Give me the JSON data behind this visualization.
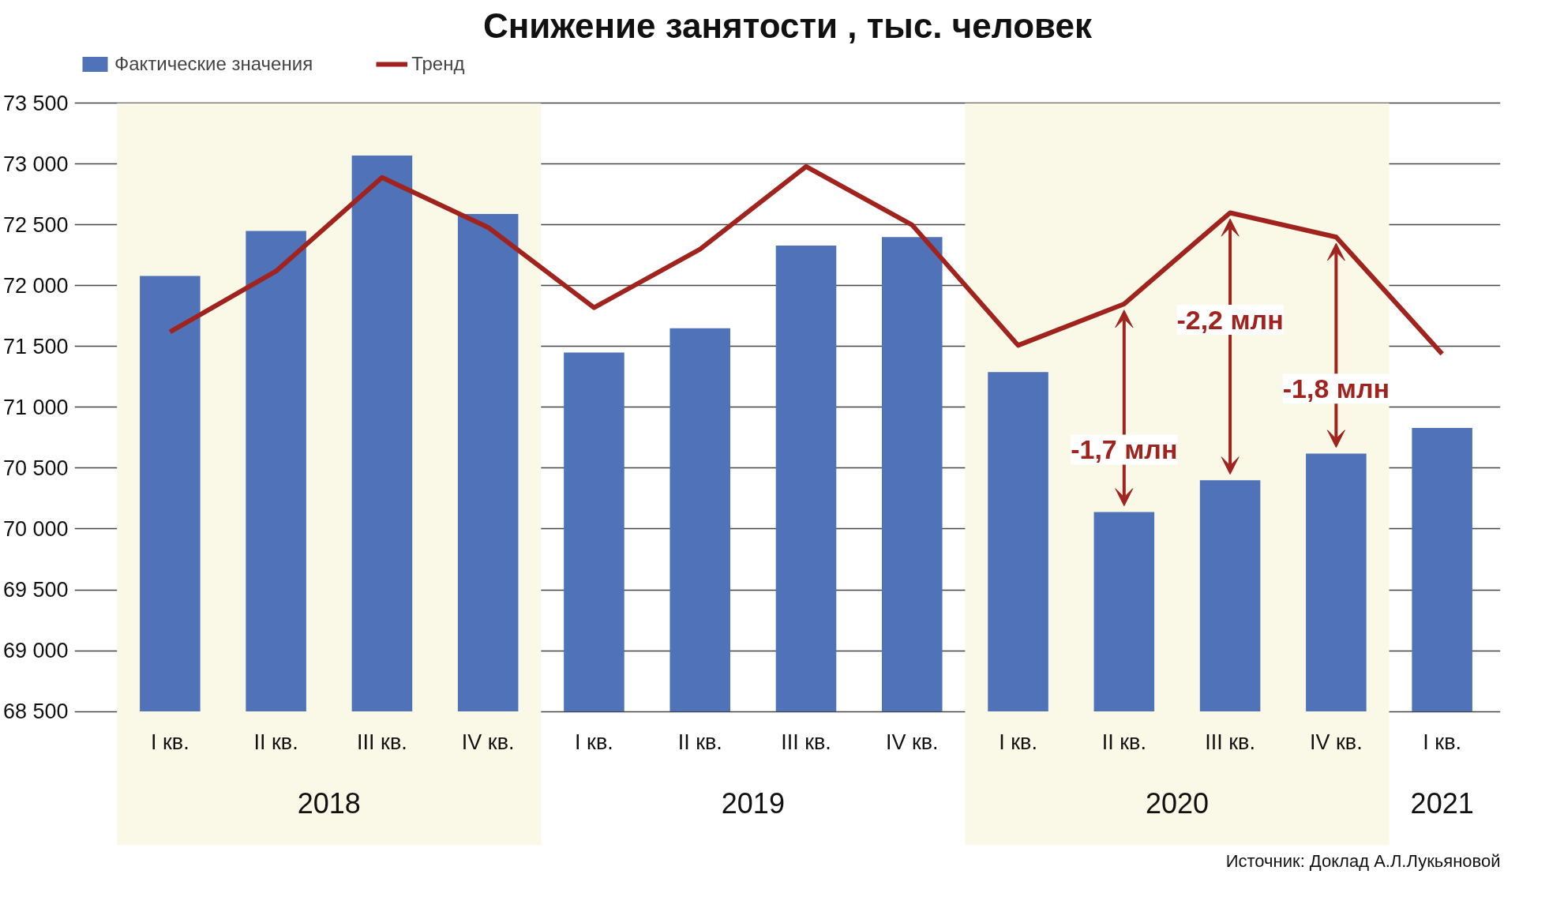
{
  "chart_data": {
    "type": "bar",
    "title": "Снижение занятости , тыс. человек",
    "categories": [
      "I кв.",
      "II кв.",
      "III кв.",
      "IV кв.",
      "I кв.",
      "II кв.",
      "III кв.",
      "IV кв.",
      "I кв.",
      "II кв.",
      "III кв.",
      "IV кв.",
      "I кв."
    ],
    "series": [
      {
        "name": "Фактические значения",
        "color": "#4f72b8",
        "values": [
          72080,
          72450,
          73070,
          72590,
          71450,
          71650,
          72330,
          72400,
          71290,
          70140,
          70400,
          70620,
          70830
        ]
      },
      {
        "name": "Тренд",
        "type": "line",
        "color": "#a0231e",
        "values": [
          71620,
          72120,
          72890,
          72480,
          71820,
          72300,
          72980,
          72500,
          71510,
          71850,
          72600,
          72400,
          71440
        ]
      }
    ],
    "ylim": [
      68500,
      73500
    ],
    "yticks": [
      {
        "value": 68500,
        "label": "68 500"
      },
      {
        "value": 69000,
        "label": "69 000"
      },
      {
        "value": 69500,
        "label": "69 500"
      },
      {
        "value": 70000,
        "label": "70 000"
      },
      {
        "value": 70500,
        "label": "70 500"
      },
      {
        "value": 71000,
        "label": "71 000"
      },
      {
        "value": 71500,
        "label": "71 500"
      },
      {
        "value": 72000,
        "label": "72 000"
      },
      {
        "value": 72500,
        "label": "72 500"
      },
      {
        "value": 73000,
        "label": "73 000"
      },
      {
        "value": 73500,
        "label": "73 500"
      }
    ],
    "grid": "y",
    "legend": "top left",
    "annotations": [
      "2018",
      "2019",
      "2020",
      "2021",
      "-1,7 млн",
      "-2,2 млн",
      "-1,8 млн",
      "Источник: Доклад А.Л.Лукьяновой"
    ]
  }
}
